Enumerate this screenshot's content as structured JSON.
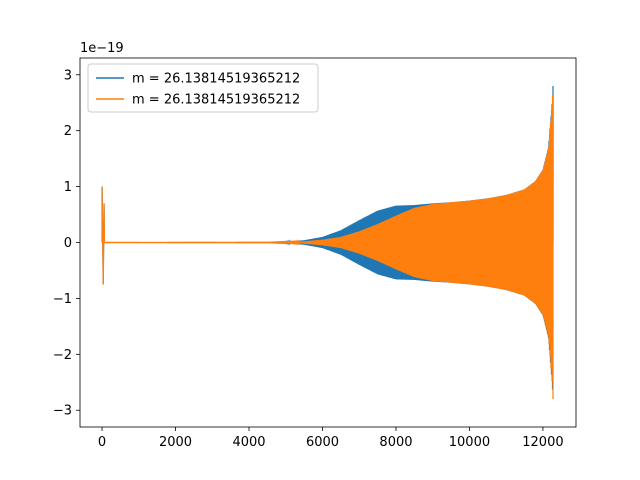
{
  "chart_data": {
    "type": "line",
    "title": "",
    "xlabel": "",
    "ylabel": "",
    "y_offset_label": "1e−19",
    "xlim": [
      -600,
      12900
    ],
    "ylim": [
      -3.3,
      3.3
    ],
    "y_unit_scale": 1e-19,
    "x_ticks": [
      0,
      2000,
      4000,
      6000,
      8000,
      10000,
      12000
    ],
    "x_tick_labels": [
      "0",
      "2000",
      "4000",
      "6000",
      "8000",
      "10000",
      "12000"
    ],
    "y_ticks": [
      -3,
      -2,
      -1,
      0,
      1,
      2,
      3
    ],
    "y_tick_labels": [
      "−3",
      "−2",
      "−1",
      "0",
      "1",
      "2",
      "3"
    ],
    "grid": false,
    "legend_position": "top-left",
    "series": [
      {
        "name": "m = 26.13814519365212",
        "color": "#1f77b4",
        "style": "oscillating-signal",
        "envelope": [
          {
            "x": 0,
            "upper": 1.0,
            "lower": -0.75
          },
          {
            "x": 60,
            "upper": 0.0,
            "lower": 0.0
          },
          {
            "x": 4500,
            "upper": 0.003,
            "lower": -0.003
          },
          {
            "x": 5000,
            "upper": 0.01,
            "lower": -0.01
          },
          {
            "x": 5500,
            "upper": 0.04,
            "lower": -0.04
          },
          {
            "x": 6000,
            "upper": 0.1,
            "lower": -0.1
          },
          {
            "x": 6500,
            "upper": 0.22,
            "lower": -0.22
          },
          {
            "x": 7000,
            "upper": 0.4,
            "lower": -0.4
          },
          {
            "x": 7500,
            "upper": 0.57,
            "lower": -0.57
          },
          {
            "x": 8000,
            "upper": 0.66,
            "lower": -0.66
          },
          {
            "x": 8500,
            "upper": 0.67,
            "lower": -0.67
          },
          {
            "x": 9000,
            "upper": 0.7,
            "lower": -0.7
          },
          {
            "x": 9500,
            "upper": 0.72,
            "lower": -0.72
          },
          {
            "x": 10000,
            "upper": 0.75,
            "lower": -0.75
          },
          {
            "x": 10500,
            "upper": 0.79,
            "lower": -0.79
          },
          {
            "x": 11000,
            "upper": 0.85,
            "lower": -0.85
          },
          {
            "x": 11500,
            "upper": 0.95,
            "lower": -0.95
          },
          {
            "x": 11800,
            "upper": 1.1,
            "lower": -1.1
          },
          {
            "x": 12000,
            "upper": 1.3,
            "lower": -1.3
          },
          {
            "x": 12150,
            "upper": 1.7,
            "lower": -1.7
          },
          {
            "x": 12250,
            "upper": 2.5,
            "lower": -2.5
          },
          {
            "x": 12290,
            "upper": 3.0,
            "lower": -3.0
          }
        ]
      },
      {
        "name": "m = 26.13814519365212",
        "color": "#ff7f0e",
        "style": "oscillating-signal",
        "envelope": [
          {
            "x": 0,
            "upper": 1.0,
            "lower": -0.75
          },
          {
            "x": 60,
            "upper": 0.0,
            "lower": 0.0
          },
          {
            "x": 4500,
            "upper": 0.003,
            "lower": -0.003
          },
          {
            "x": 5000,
            "upper": 0.008,
            "lower": -0.008
          },
          {
            "x": 5500,
            "upper": 0.02,
            "lower": -0.02
          },
          {
            "x": 6000,
            "upper": 0.05,
            "lower": -0.05
          },
          {
            "x": 6500,
            "upper": 0.1,
            "lower": -0.1
          },
          {
            "x": 7000,
            "upper": 0.2,
            "lower": -0.2
          },
          {
            "x": 7500,
            "upper": 0.33,
            "lower": -0.33
          },
          {
            "x": 8000,
            "upper": 0.48,
            "lower": -0.48
          },
          {
            "x": 8500,
            "upper": 0.62,
            "lower": -0.62
          },
          {
            "x": 9000,
            "upper": 0.69,
            "lower": -0.69
          },
          {
            "x": 9500,
            "upper": 0.72,
            "lower": -0.72
          },
          {
            "x": 10000,
            "upper": 0.75,
            "lower": -0.75
          },
          {
            "x": 10500,
            "upper": 0.79,
            "lower": -0.79
          },
          {
            "x": 11000,
            "upper": 0.85,
            "lower": -0.85
          },
          {
            "x": 11500,
            "upper": 0.95,
            "lower": -0.95
          },
          {
            "x": 11800,
            "upper": 1.1,
            "lower": -1.1
          },
          {
            "x": 12000,
            "upper": 1.3,
            "lower": -1.3
          },
          {
            "x": 12150,
            "upper": 1.7,
            "lower": -1.7
          },
          {
            "x": 12250,
            "upper": 2.5,
            "lower": -2.5
          },
          {
            "x": 12290,
            "upper": 3.0,
            "lower": -3.0
          }
        ]
      }
    ]
  }
}
